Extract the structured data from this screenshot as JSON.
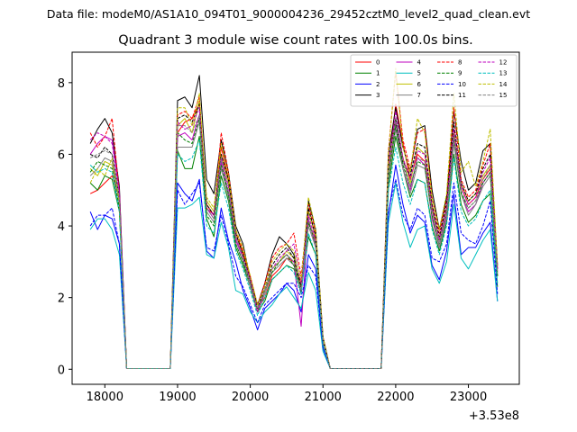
{
  "suptitle": "Data file: modeM0/AS1A10_094T01_9000004236_29452cztM0_level2_quad_clean.evt",
  "chart_data": {
    "type": "line",
    "title": "Quadrant 3 module wise count rates with 100.0s bins.",
    "xlabel": "",
    "ylabel": "",
    "x_offset_label": "+3.53e8",
    "xlim": [
      17550,
      23700
    ],
    "ylim": [
      -0.42,
      8.85
    ],
    "x_ticks": [
      18000,
      19000,
      20000,
      21000,
      22000,
      23000
    ],
    "x_tick_labels": [
      "18000",
      "19000",
      "20000",
      "21000",
      "22000",
      "23000"
    ],
    "y_ticks": [
      0,
      2,
      4,
      6,
      8
    ],
    "y_tick_labels": [
      "0",
      "2",
      "4",
      "6",
      "8"
    ],
    "legend": {
      "location": "top-right",
      "columns": 4
    },
    "x": [
      17800,
      17900,
      18000,
      18100,
      18200,
      18300,
      18800,
      18900,
      19000,
      19100,
      19200,
      19300,
      19400,
      19500,
      19600,
      19700,
      19800,
      19900,
      20000,
      20100,
      20200,
      20300,
      20400,
      20500,
      20600,
      20700,
      20800,
      20900,
      21000,
      21100,
      21800,
      21900,
      22000,
      22100,
      22200,
      22300,
      22400,
      22500,
      22600,
      22700,
      22800,
      22900,
      23000,
      23100,
      23200,
      23300,
      23400
    ],
    "series": [
      {
        "name": "0",
        "color": "#ff0000",
        "dash": "solid",
        "values": [
          4.9,
          5.0,
          5.2,
          5.4,
          4.8,
          0.02,
          0.02,
          0.02,
          6.6,
          6.9,
          7.0,
          7.4,
          4.6,
          4.3,
          6.2,
          5.3,
          3.8,
          3.2,
          2.6,
          1.7,
          2.0,
          2.6,
          2.8,
          3.1,
          3.0,
          2.4,
          4.1,
          3.6,
          0.8,
          0.02,
          0.02,
          5.6,
          7.4,
          6.3,
          5.3,
          6.0,
          5.8,
          4.5,
          3.6,
          4.5,
          6.7,
          5.1,
          4.6,
          4.8,
          5.3,
          5.6,
          2.6
        ]
      },
      {
        "name": "1",
        "color": "#008000",
        "dash": "solid",
        "values": [
          5.2,
          5.0,
          5.4,
          5.3,
          4.4,
          0.02,
          0.02,
          0.02,
          6.1,
          5.6,
          5.6,
          6.5,
          4.2,
          3.7,
          5.4,
          4.7,
          3.4,
          2.9,
          2.3,
          1.6,
          1.9,
          2.5,
          2.7,
          2.9,
          2.8,
          2.2,
          3.7,
          3.2,
          0.7,
          0.02,
          0.02,
          5.1,
          6.5,
          5.6,
          4.8,
          5.3,
          5.2,
          4.0,
          3.3,
          4.1,
          6.0,
          4.6,
          4.1,
          4.3,
          4.7,
          4.9,
          2.3
        ]
      },
      {
        "name": "2",
        "color": "#0000ff",
        "dash": "solid",
        "values": [
          4.4,
          3.9,
          4.3,
          4.2,
          3.5,
          0.02,
          0.02,
          0.02,
          5.2,
          4.9,
          4.7,
          5.3,
          3.3,
          3.1,
          4.5,
          3.6,
          3.0,
          2.2,
          1.7,
          1.1,
          1.7,
          1.9,
          2.1,
          2.4,
          2.2,
          1.6,
          3.2,
          2.8,
          0.6,
          0.02,
          0.02,
          4.3,
          5.7,
          4.6,
          3.8,
          4.3,
          4.1,
          2.9,
          2.5,
          3.3,
          4.9,
          3.2,
          3.4,
          3.4,
          3.8,
          4.1,
          1.9
        ]
      },
      {
        "name": "3",
        "color": "#000000",
        "dash": "solid",
        "values": [
          6.3,
          6.7,
          7.0,
          6.6,
          5.1,
          0.02,
          0.02,
          0.02,
          7.5,
          7.6,
          7.3,
          8.2,
          5.3,
          4.9,
          6.4,
          5.5,
          4.0,
          3.5,
          2.5,
          1.8,
          2.4,
          3.2,
          3.7,
          3.5,
          3.2,
          2.1,
          4.7,
          3.9,
          0.9,
          0.02,
          0.02,
          6.0,
          7.3,
          6.2,
          5.5,
          6.7,
          6.8,
          5.0,
          3.9,
          4.8,
          7.2,
          5.8,
          5.0,
          5.2,
          6.1,
          6.3,
          2.9
        ]
      },
      {
        "name": "4",
        "color": "#bf00bf",
        "dash": "solid",
        "values": [
          6.0,
          6.3,
          6.5,
          6.4,
          5.0,
          0.02,
          0.02,
          0.02,
          6.5,
          6.6,
          6.4,
          7.1,
          4.5,
          4.2,
          5.8,
          4.9,
          3.6,
          3.1,
          2.4,
          1.6,
          2.2,
          2.8,
          3.0,
          3.2,
          3.0,
          1.2,
          4.2,
          3.4,
          0.8,
          0.02,
          0.02,
          5.4,
          6.9,
          5.6,
          5.0,
          5.9,
          5.7,
          4.2,
          3.4,
          4.3,
          6.4,
          4.9,
          4.4,
          4.6,
          5.2,
          5.5,
          2.7
        ]
      },
      {
        "name": "5",
        "color": "#00bfbf",
        "dash": "solid",
        "values": [
          3.9,
          4.2,
          4.2,
          3.9,
          3.2,
          0.02,
          0.02,
          0.02,
          4.5,
          4.5,
          4.6,
          4.8,
          3.2,
          3.1,
          4.1,
          3.4,
          2.2,
          2.1,
          1.6,
          1.3,
          1.6,
          1.8,
          2.1,
          2.3,
          2.0,
          1.7,
          2.7,
          2.2,
          0.5,
          0.02,
          0.02,
          4.1,
          5.2,
          4.1,
          3.4,
          3.9,
          4.0,
          2.8,
          2.4,
          3.0,
          4.6,
          3.1,
          2.8,
          3.2,
          3.6,
          3.9,
          1.9
        ]
      },
      {
        "name": "6",
        "color": "#bfbf00",
        "dash": "solid",
        "values": [
          5.6,
          5.4,
          5.8,
          5.7,
          4.7,
          0.02,
          0.02,
          0.02,
          6.8,
          7.0,
          6.6,
          7.5,
          4.7,
          4.4,
          6.0,
          5.2,
          3.8,
          3.3,
          2.5,
          1.7,
          2.2,
          2.8,
          3.0,
          3.3,
          3.1,
          2.3,
          4.4,
          3.7,
          0.8,
          0.02,
          0.02,
          5.6,
          7.0,
          5.9,
          5.2,
          6.2,
          6.0,
          4.6,
          3.6,
          4.5,
          6.6,
          5.2,
          4.7,
          4.9,
          5.4,
          5.7,
          2.7
        ]
      },
      {
        "name": "7",
        "color": "#808080",
        "dash": "solid",
        "values": [
          5.4,
          5.6,
          5.9,
          5.8,
          4.6,
          0.02,
          0.02,
          0.02,
          6.2,
          6.2,
          6.2,
          6.9,
          4.4,
          4.1,
          5.6,
          4.8,
          3.5,
          3.0,
          2.3,
          1.6,
          2.1,
          2.7,
          2.9,
          3.1,
          2.9,
          2.2,
          4.0,
          3.4,
          0.7,
          0.02,
          0.02,
          5.3,
          6.7,
          5.6,
          4.9,
          5.7,
          5.6,
          4.3,
          3.4,
          4.2,
          6.3,
          4.9,
          4.3,
          4.6,
          5.1,
          5.4,
          2.6
        ]
      },
      {
        "name": "8",
        "color": "#ff0000",
        "dash": "dashed",
        "values": [
          6.6,
          6.2,
          6.5,
          7.0,
          4.9,
          0.02,
          0.02,
          0.02,
          7.1,
          7.2,
          7.0,
          7.6,
          4.5,
          4.3,
          6.6,
          5.5,
          3.9,
          3.3,
          2.6,
          1.8,
          2.4,
          3.1,
          3.4,
          3.5,
          3.8,
          2.6,
          4.6,
          3.8,
          0.9,
          0.02,
          0.02,
          6.1,
          8.3,
          6.4,
          5.6,
          6.6,
          6.7,
          4.8,
          3.8,
          4.7,
          7.3,
          5.3,
          4.8,
          5.0,
          5.7,
          6.3,
          2.8
        ]
      },
      {
        "name": "9",
        "color": "#008000",
        "dash": "dashed",
        "values": [
          5.5,
          5.8,
          5.7,
          5.6,
          4.5,
          0.02,
          0.02,
          0.02,
          6.6,
          6.4,
          6.3,
          7.0,
          4.3,
          4.0,
          5.7,
          4.9,
          3.5,
          3.0,
          2.4,
          1.6,
          2.2,
          2.7,
          3.0,
          3.2,
          2.9,
          2.3,
          4.1,
          3.5,
          0.8,
          0.02,
          0.02,
          5.4,
          6.8,
          5.7,
          5.1,
          5.8,
          5.7,
          4.3,
          3.5,
          4.4,
          6.5,
          4.9,
          4.5,
          4.7,
          5.2,
          5.5,
          2.6
        ]
      },
      {
        "name": "10",
        "color": "#0000ff",
        "dash": "dashed",
        "values": [
          4.0,
          4.3,
          4.3,
          4.5,
          3.5,
          0.02,
          0.02,
          0.02,
          5.0,
          4.6,
          4.9,
          5.2,
          3.4,
          3.3,
          4.3,
          3.5,
          2.6,
          2.3,
          1.8,
          1.3,
          1.8,
          2.0,
          2.2,
          2.4,
          2.4,
          2.0,
          2.9,
          2.6,
          0.6,
          0.02,
          0.02,
          4.4,
          5.3,
          4.3,
          3.9,
          4.5,
          4.3,
          3.1,
          3.0,
          3.5,
          5.2,
          3.8,
          3.6,
          3.5,
          4.0,
          4.7,
          2.1
        ]
      },
      {
        "name": "11",
        "color": "#000000",
        "dash": "dashed",
        "values": [
          6.0,
          5.9,
          6.2,
          6.0,
          4.8,
          0.02,
          0.02,
          0.02,
          7.0,
          7.1,
          6.9,
          7.4,
          4.6,
          4.3,
          6.0,
          5.3,
          3.8,
          3.2,
          2.5,
          1.7,
          2.3,
          2.9,
          3.2,
          3.4,
          3.1,
          2.3,
          4.5,
          3.7,
          0.8,
          0.02,
          0.02,
          5.8,
          7.0,
          5.8,
          5.4,
          6.3,
          6.2,
          4.6,
          3.7,
          4.6,
          6.9,
          5.2,
          4.7,
          4.9,
          5.6,
          6.0,
          2.8
        ]
      },
      {
        "name": "12",
        "color": "#bf00bf",
        "dash": "dashed",
        "values": [
          6.4,
          6.6,
          6.5,
          6.3,
          4.9,
          0.02,
          0.02,
          0.02,
          6.9,
          6.7,
          6.8,
          7.3,
          4.5,
          4.3,
          5.9,
          5.1,
          3.7,
          3.1,
          2.5,
          1.6,
          2.2,
          2.8,
          3.1,
          3.3,
          3.5,
          2.4,
          4.3,
          3.6,
          0.8,
          0.02,
          0.02,
          5.7,
          7.2,
          5.9,
          5.3,
          6.1,
          6.0,
          4.5,
          3.6,
          4.5,
          6.7,
          5.1,
          4.6,
          4.8,
          5.5,
          5.9,
          2.8
        ]
      },
      {
        "name": "13",
        "color": "#00bfbf",
        "dash": "dashed",
        "values": [
          5.7,
          5.5,
          5.6,
          5.5,
          4.4,
          0.02,
          0.02,
          0.02,
          6.0,
          5.8,
          5.9,
          6.4,
          4.0,
          3.8,
          5.2,
          4.5,
          3.3,
          2.8,
          2.2,
          1.5,
          2.0,
          2.5,
          2.7,
          2.9,
          2.7,
          2.1,
          3.8,
          3.2,
          0.7,
          0.02,
          0.02,
          5.0,
          6.2,
          5.2,
          4.6,
          5.3,
          5.2,
          3.9,
          3.2,
          4.0,
          5.9,
          4.4,
          4.0,
          4.2,
          4.7,
          5.0,
          2.4
        ]
      },
      {
        "name": "14",
        "color": "#bfbf00",
        "dash": "dashed",
        "values": [
          5.2,
          5.6,
          5.4,
          5.9,
          4.7,
          0.02,
          0.02,
          0.02,
          7.3,
          7.3,
          6.8,
          7.7,
          4.8,
          4.5,
          6.3,
          5.4,
          3.9,
          3.4,
          2.6,
          1.8,
          2.3,
          3.0,
          3.3,
          3.5,
          3.3,
          2.5,
          4.8,
          3.9,
          0.9,
          0.02,
          0.02,
          6.0,
          8.4,
          6.2,
          5.5,
          7.0,
          6.6,
          4.8,
          3.9,
          4.9,
          7.7,
          5.5,
          5.8,
          5.1,
          5.8,
          6.7,
          2.9
        ]
      },
      {
        "name": "15",
        "color": "#808080",
        "dash": "dashed",
        "values": [
          5.9,
          6.0,
          6.1,
          6.0,
          4.8,
          0.02,
          0.02,
          0.02,
          6.8,
          6.8,
          6.6,
          7.1,
          4.5,
          4.2,
          5.9,
          5.0,
          3.7,
          3.1,
          2.4,
          1.7,
          2.2,
          2.8,
          3.0,
          3.2,
          3.0,
          2.2,
          4.2,
          3.5,
          0.8,
          0.02,
          0.02,
          5.5,
          7.0,
          5.8,
          5.1,
          5.9,
          5.8,
          4.4,
          3.5,
          4.4,
          6.5,
          5.0,
          4.5,
          4.7,
          5.3,
          5.7,
          2.7
        ]
      }
    ]
  }
}
